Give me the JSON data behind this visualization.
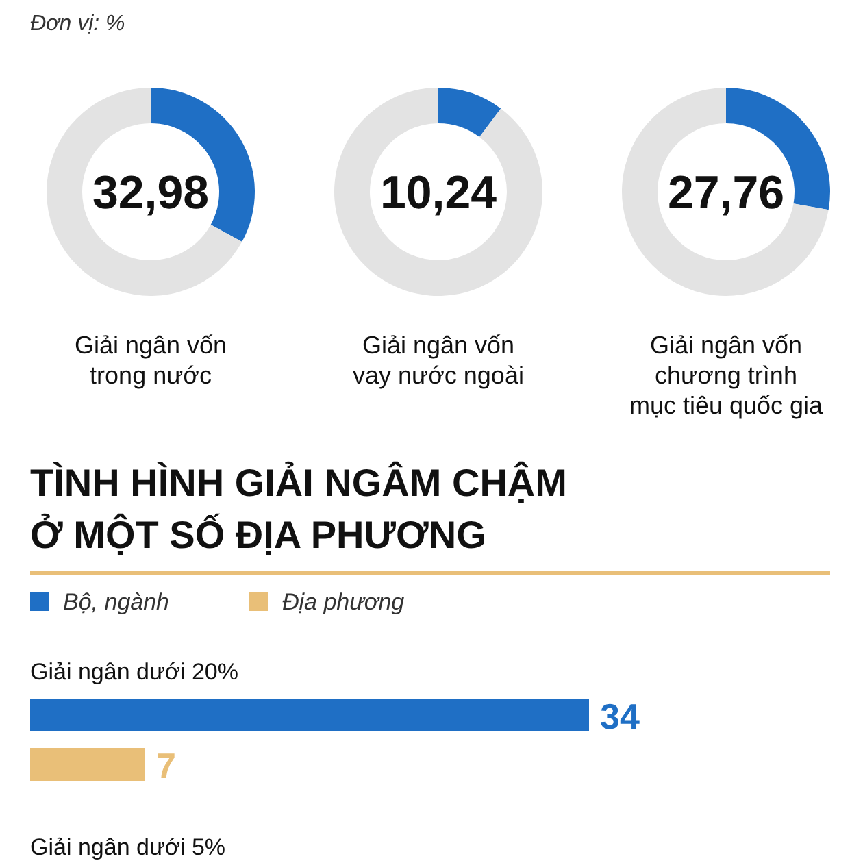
{
  "chart_data": [
    {
      "type": "donut",
      "title": "Giải ngân vốn\ntrong nước",
      "annotations": [
        "Đơn vị: %",
        {
          "text": "32,98"
        }
      ],
      "categories": [
        null,
        null
      ],
      "values": [
        32.98,
        67.02
      ],
      "colors": [
        "#1f6fc5",
        "#e3e3e3"
      ]
    },
    {
      "type": "donut",
      "title": "Giải ngân vốn\nvay nước ngoài",
      "annotations": [
        {
          "text": "10,24"
        }
      ],
      "categories": [
        null,
        null
      ],
      "values": [
        10.24,
        89.76
      ],
      "colors": [
        "#1f6fc5",
        "#e3e3e3"
      ]
    },
    {
      "type": "donut",
      "title": "Giải ngân vốn\nchương trình\nmục tiêu quốc gia",
      "annotations": [
        {
          "text": "27,76"
        }
      ],
      "categories": [
        null,
        null
      ],
      "values": [
        27.76,
        72.24
      ],
      "colors": [
        "#1f6fc5",
        "#e3e3e3"
      ]
    },
    {
      "type": "bar",
      "orientation": "horizontal",
      "title": "TÌNH HÌNH GIẢI NGÂM CHẬM\nỞ MỘT SỐ ĐỊA PHƯƠNG",
      "categories": [
        "Giải ngân dưới 20%",
        "Giải ngân dưới 5%"
      ],
      "legend": "top left",
      "data_labels": true,
      "series": [
        {
          "name": "Bộ, ngành",
          "color": "#1f6fc5",
          "values": [
            34,
            null
          ]
        },
        {
          "name": "Địa phương",
          "color": "#e9bf78",
          "values": [
            7,
            null
          ]
        }
      ]
    }
  ]
}
